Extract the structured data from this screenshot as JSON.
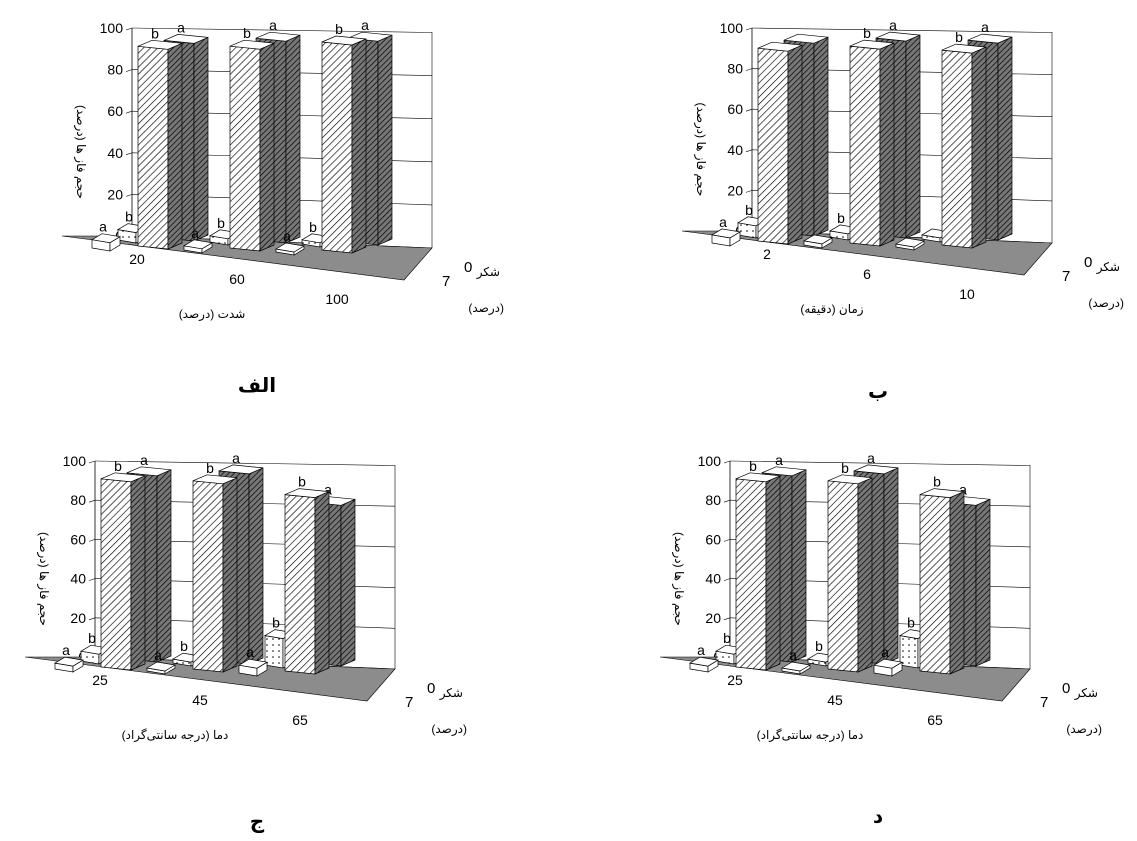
{
  "chart_data": [
    {
      "type": "bar",
      "panel_label": "الف",
      "ylabel": "حجم فاز ها (درصد)",
      "xlabel": "شدت (درصد)",
      "zlabel": "شکر",
      "zlabel_unit": "(درصد)",
      "categories": [
        "20",
        "60",
        "100"
      ],
      "depth_categories": [
        "7",
        "0"
      ],
      "yticks": [
        "0",
        "20",
        "40",
        "60",
        "80",
        "100"
      ],
      "ylim": [
        0,
        100
      ],
      "series": [
        {
          "values": [
            4,
            2,
            0
          ],
          "letters": [
            "a",
            "a",
            "a"
          ]
        },
        {
          "values": [
            5,
            3,
            2
          ],
          "letters": [
            "b",
            "b",
            "b"
          ]
        },
        {
          "values": [
            96,
            97,
            100
          ],
          "letters": [
            "b",
            "b",
            "b"
          ]
        },
        {
          "values": [
            95,
            97,
            98
          ],
          "letters": [
            "a",
            "a",
            "a"
          ]
        }
      ]
    },
    {
      "type": "bar",
      "panel_label": "ب",
      "ylabel": "حجم فاز ها (درصد)",
      "xlabel": "زمان (دقیقه)",
      "zlabel": "شکر",
      "zlabel_unit": "(درصد)",
      "categories": [
        "2",
        "6",
        "10"
      ],
      "depth_categories": [
        "7",
        "0"
      ],
      "yticks": [
        "0",
        "20",
        "40",
        "60",
        "80",
        "100"
      ],
      "ylim": [
        0,
        100
      ],
      "series": [
        {
          "values": [
            4,
            2,
            0
          ],
          "letters": [
            "a",
            "",
            ""
          ]
        },
        {
          "values": [
            6,
            3,
            2
          ],
          "letters": [
            "b",
            "b",
            ""
          ]
        },
        {
          "values": [
            95,
            97,
            96
          ],
          "letters": [
            "",
            "b",
            "b"
          ]
        },
        {
          "values": [
            95,
            97,
            97
          ],
          "letters": [
            "",
            "a",
            "a"
          ]
        }
      ]
    },
    {
      "type": "bar",
      "panel_label": "ج",
      "ylabel": "حجم فاز ها (درصد)",
      "xlabel": "دما (درجه سانتی‌گراد)",
      "zlabel": "شکر",
      "zlabel_unit": "(درصد)",
      "categories": [
        "25",
        "45",
        "65"
      ],
      "depth_categories": [
        "7",
        "0"
      ],
      "yticks": [
        "0",
        "20",
        "40",
        "60",
        "80",
        "100"
      ],
      "ylim": [
        0,
        100
      ],
      "series": [
        {
          "values": [
            3,
            0,
            4
          ],
          "letters": [
            "a",
            "a",
            "a"
          ]
        },
        {
          "values": [
            5,
            2,
            15
          ],
          "letters": [
            "b",
            "b",
            "b"
          ]
        },
        {
          "values": [
            96,
            96,
            90
          ],
          "letters": [
            "b",
            "b",
            "b"
          ]
        },
        {
          "values": [
            95,
            97,
            82
          ],
          "letters": [
            "a",
            "a",
            "a"
          ]
        }
      ]
    },
    {
      "type": "bar",
      "panel_label": "د",
      "ylabel": "حجم فاز ها (درصد)",
      "xlabel": "دما (درجه سانتی‌گراد)",
      "zlabel": "شکر",
      "zlabel_unit": "(درصد)",
      "categories": [
        "25",
        "45",
        "65"
      ],
      "depth_categories": [
        "7",
        "0"
      ],
      "yticks": [
        "0",
        "20",
        "40",
        "60",
        "80",
        "100"
      ],
      "ylim": [
        0,
        100
      ],
      "series": [
        {
          "values": [
            3,
            0,
            4
          ],
          "letters": [
            "a",
            "a",
            "a"
          ]
        },
        {
          "values": [
            5,
            2,
            15
          ],
          "letters": [
            "b",
            "b",
            "b"
          ]
        },
        {
          "values": [
            96,
            96,
            90
          ],
          "letters": [
            "b",
            "b",
            "b"
          ]
        },
        {
          "values": [
            95,
            97,
            82
          ],
          "letters": [
            "a",
            "a",
            "a"
          ]
        }
      ]
    }
  ],
  "colors": {
    "floor": "#8c8c8c",
    "bar_light": "#ffffff",
    "bar_hatch": "#ffffff",
    "bar_dark_hatch": "#555555",
    "axis": "#000000"
  }
}
